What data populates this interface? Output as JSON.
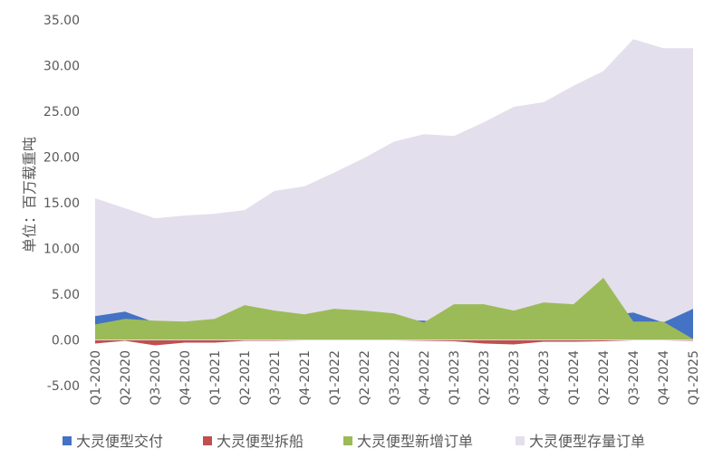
{
  "chart_data": {
    "type": "area",
    "ylabel": "单位：百万载重吨",
    "ylim": [
      -5,
      35
    ],
    "yticks": [
      "-5.00",
      "0.00",
      "5.00",
      "10.00",
      "15.00",
      "20.00",
      "25.00",
      "30.00",
      "35.00"
    ],
    "categories": [
      "Q1-2020",
      "Q2-2020",
      "Q3-2020",
      "Q4-2020",
      "Q1-2021",
      "Q2-2021",
      "Q3-2021",
      "Q4-2021",
      "Q1-2022",
      "Q2-2022",
      "Q3-2022",
      "Q4-2022",
      "Q1-2023",
      "Q2-2023",
      "Q3-2023",
      "Q4-2023",
      "Q1-2024",
      "Q2-2024",
      "Q3-2024",
      "Q4-2024",
      "Q1-2025"
    ],
    "series": [
      {
        "name": "大灵便型交付",
        "color": "#4472C4",
        "values": [
          2.6,
          3.1,
          1.9,
          1.9,
          2.2,
          2.2,
          2.4,
          2.6,
          2.4,
          2.2,
          2.2,
          2.1,
          1.8,
          2.0,
          2.3,
          2.2,
          2.6,
          2.6,
          3.0,
          1.9,
          3.4
        ]
      },
      {
        "name": "大灵便型拆船",
        "color": "#C0504D",
        "values": [
          -0.4,
          -0.1,
          -0.6,
          -0.3,
          -0.3,
          -0.1,
          -0.1,
          -0.05,
          -0.05,
          -0.05,
          -0.05,
          -0.1,
          -0.15,
          -0.4,
          -0.5,
          -0.2,
          -0.2,
          -0.15,
          -0.05,
          -0.05,
          -0.1
        ]
      },
      {
        "name": "大灵便型新增订单",
        "color": "#9BBB59",
        "values": [
          1.7,
          2.3,
          2.1,
          2.0,
          2.3,
          3.8,
          3.2,
          2.8,
          3.4,
          3.2,
          2.9,
          1.9,
          3.9,
          3.9,
          3.2,
          4.1,
          3.9,
          6.8,
          2.0,
          2.0,
          0.1
        ]
      },
      {
        "name": "大灵便型存量订单",
        "color": "#E4DFEC",
        "values": [
          15.5,
          14.4,
          13.3,
          13.6,
          13.8,
          14.2,
          16.3,
          16.8,
          18.3,
          19.9,
          21.7,
          22.5,
          22.3,
          23.8,
          25.5,
          26.0,
          27.8,
          29.4,
          32.9,
          31.9,
          31.9
        ]
      }
    ],
    "legend_position": "bottom",
    "grid": false
  }
}
